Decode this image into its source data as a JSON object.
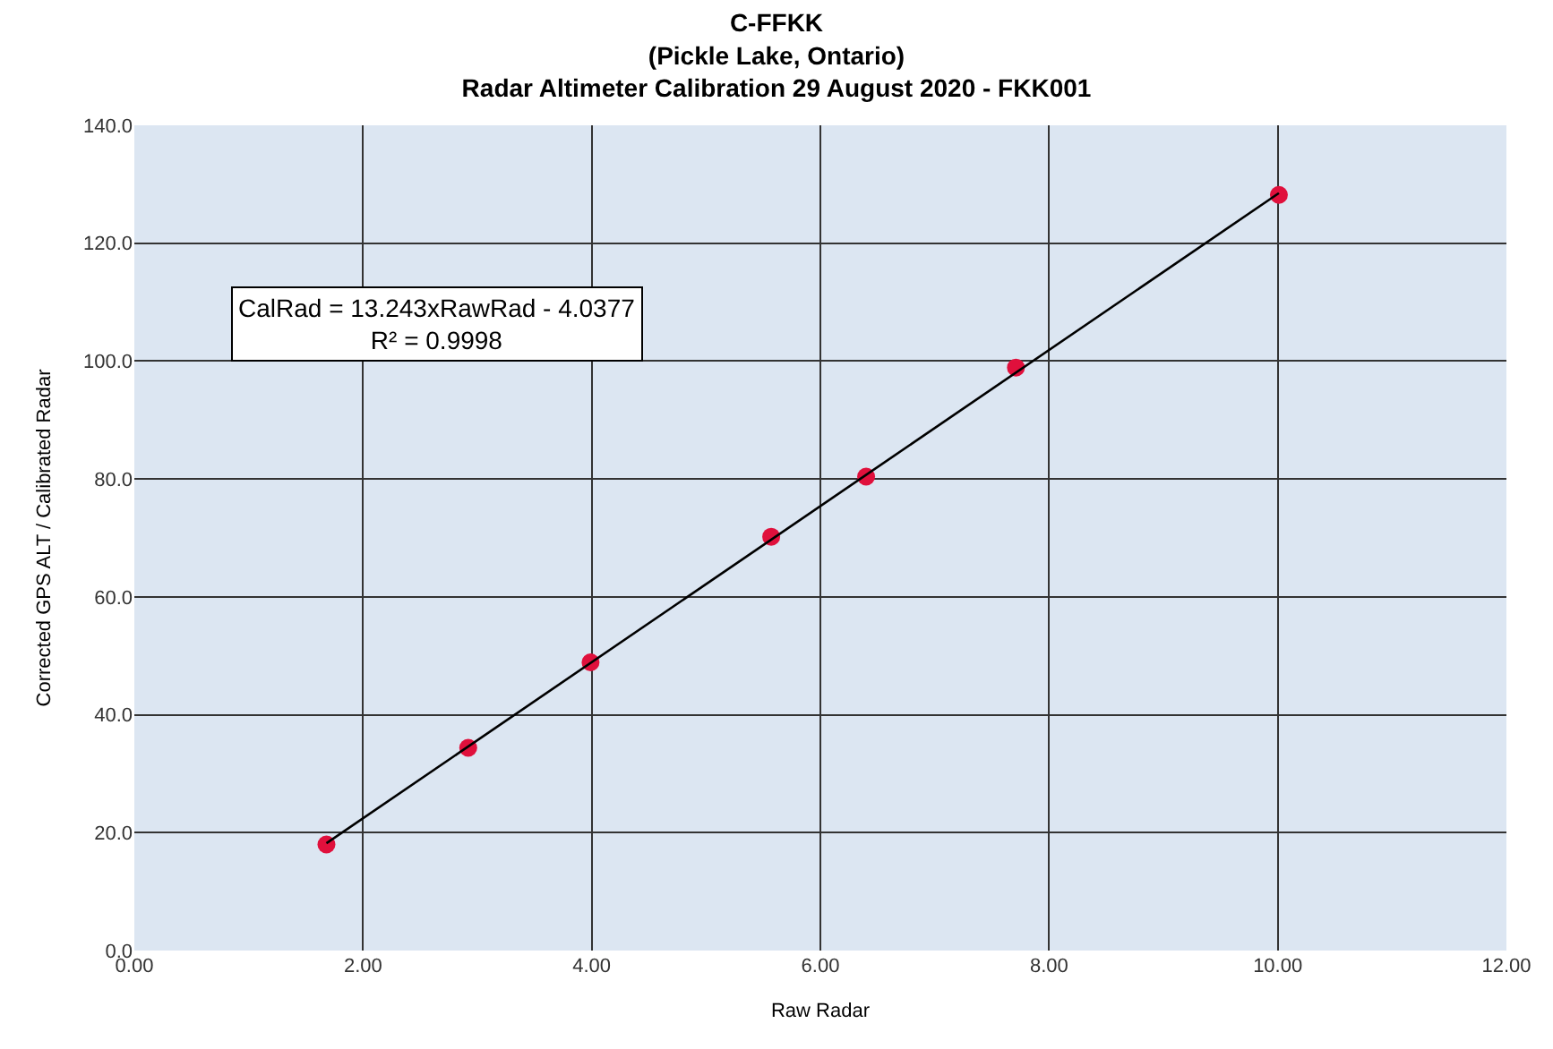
{
  "chart_data": {
    "type": "scatter",
    "title": "C-FFKK",
    "subtitle": "(Pickle Lake, Ontario)\nRadar Altimeter Calibration 29 August 2020 - FKK001",
    "xlabel": "Raw Radar",
    "ylabel": "Corrected GPS ALT / Calibrated Radar",
    "x": [
      1.68,
      2.92,
      3.99,
      5.57,
      6.4,
      7.71,
      10.01
    ],
    "series": [
      {
        "color": "#e0103c",
        "marker": "circle",
        "values": [
          18.0,
          34.4,
          48.9,
          70.2,
          80.4,
          98.9,
          128.2
        ]
      },
      {
        "type": "line",
        "color": "#000000",
        "marker": "none",
        "x": [
          1.68,
          10.01
        ],
        "values": [
          18.2,
          128.5
        ]
      }
    ],
    "annotations": [
      "CalRad = 13.243xRawRad - 4.0377",
      "R² = 0.9998"
    ],
    "xlim": [
      0,
      12
    ],
    "xticks": [
      {
        "value": 0,
        "label": "0.00"
      },
      {
        "value": 2,
        "label": "2.00"
      },
      {
        "value": 4,
        "label": "4.00"
      },
      {
        "value": 6,
        "label": "6.00"
      },
      {
        "value": 8,
        "label": "8.00"
      },
      {
        "value": 10,
        "label": "10.00"
      },
      {
        "value": 12,
        "label": "12.00"
      }
    ],
    "ylim": [
      0,
      140
    ],
    "yticks": [
      {
        "value": 0,
        "label": "0.0"
      },
      {
        "value": 20,
        "label": "20.0"
      },
      {
        "value": 40,
        "label": "40.0"
      },
      {
        "value": 60,
        "label": "60.0"
      },
      {
        "value": 80,
        "label": "80.0"
      },
      {
        "value": 100,
        "label": "100.0"
      },
      {
        "value": 120,
        "label": "120.0"
      },
      {
        "value": 140,
        "label": "140.0"
      }
    ],
    "grid": true
  }
}
